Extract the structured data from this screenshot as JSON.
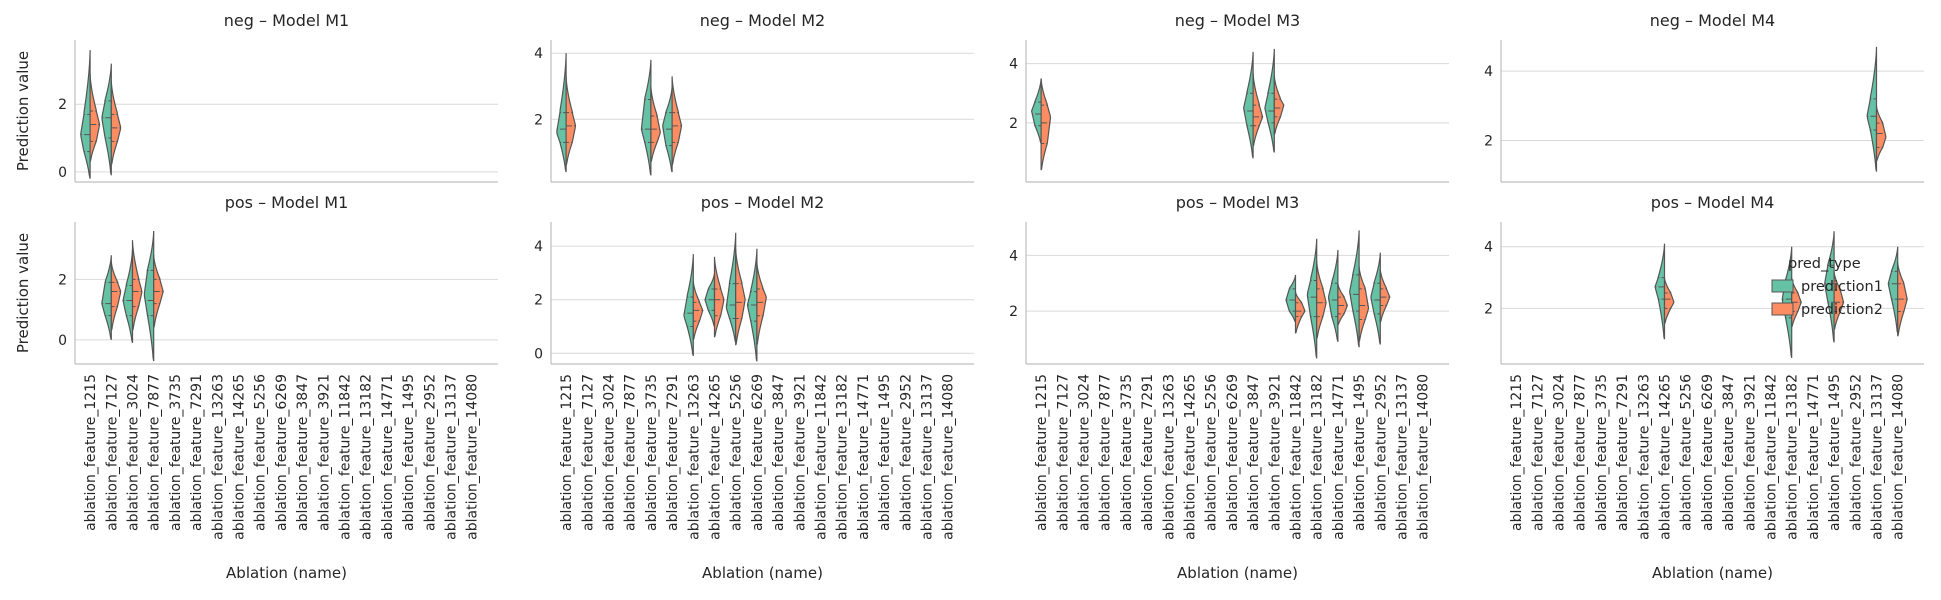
{
  "figure": {
    "legend_title": "pred_type",
    "legend_placement": "right",
    "colors": {
      "prediction1": "#66c2a5",
      "prediction2": "#fc8d62",
      "grid": "#d9d9d9",
      "spine": "#bfbfbf",
      "outline": "#555555"
    }
  },
  "chart_data": {
    "type": "violin",
    "split": true,
    "grid": true,
    "series_names": [
      "prediction1",
      "prediction2"
    ],
    "xlabel": "Ablation (name)",
    "ylabel": "Prediction value",
    "categories": [
      "ablation_feature_1215",
      "ablation_feature_7127",
      "ablation_feature_3024",
      "ablation_feature_7877",
      "ablation_feature_3735",
      "ablation_feature_7291",
      "ablation_feature_13263",
      "ablation_feature_14265",
      "ablation_feature_5256",
      "ablation_feature_6269",
      "ablation_feature_3847",
      "ablation_feature_3921",
      "ablation_feature_11842",
      "ablation_feature_13182",
      "ablation_feature_14771",
      "ablation_feature_1495",
      "ablation_feature_2952",
      "ablation_feature_13137",
      "ablation_feature_14080"
    ],
    "panels": [
      {
        "title": "neg – Model M1",
        "row": 0,
        "col": 0,
        "ylim": [
          -0.3,
          3.9
        ],
        "yticks": [
          0,
          2
        ],
        "violins": [
          {
            "category": "ablation_feature_1215",
            "p1": {
              "min": -0.2,
              "q1": 0.6,
              "median": 1.1,
              "q3": 1.7,
              "max": 3.6,
              "mode": 1.1
            },
            "p2": {
              "min": 0.3,
              "q1": 0.9,
              "median": 1.4,
              "q3": 1.8,
              "max": 2.9,
              "mode": 1.4
            }
          },
          {
            "category": "ablation_feature_7127",
            "p1": {
              "min": -0.1,
              "q1": 1.0,
              "median": 1.6,
              "q3": 2.1,
              "max": 3.2,
              "mode": 1.6
            },
            "p2": {
              "min": 0.2,
              "q1": 0.9,
              "median": 1.3,
              "q3": 1.7,
              "max": 2.7,
              "mode": 1.3
            }
          }
        ]
      },
      {
        "title": "neg – Model M2",
        "row": 0,
        "col": 1,
        "ylim": [
          0.1,
          4.4
        ],
        "yticks": [
          2,
          4
        ],
        "violins": [
          {
            "category": "ablation_feature_1215",
            "p1": {
              "min": 0.4,
              "q1": 1.3,
              "median": 1.7,
              "q3": 2.2,
              "max": 4.0,
              "mode": 1.6
            },
            "p2": {
              "min": 0.6,
              "q1": 1.3,
              "median": 1.8,
              "q3": 2.2,
              "max": 3.3,
              "mode": 1.8
            }
          },
          {
            "category": "ablation_feature_3735",
            "p1": {
              "min": 0.3,
              "q1": 1.3,
              "median": 1.7,
              "q3": 2.6,
              "max": 3.8,
              "mode": 1.7
            },
            "p2": {
              "min": 0.7,
              "q1": 1.3,
              "median": 1.7,
              "q3": 2.1,
              "max": 3.0,
              "mode": 1.6
            }
          },
          {
            "category": "ablation_feature_7291",
            "p1": {
              "min": 0.4,
              "q1": 1.2,
              "median": 1.7,
              "q3": 2.2,
              "max": 3.0,
              "mode": 1.8
            },
            "p2": {
              "min": 0.6,
              "q1": 1.3,
              "median": 1.8,
              "q3": 2.2,
              "max": 3.3,
              "mode": 1.8
            }
          }
        ]
      },
      {
        "title": "neg – Model M3",
        "row": 0,
        "col": 2,
        "ylim": [
          0.0,
          4.8
        ],
        "yticks": [
          2,
          4
        ],
        "violins": [
          {
            "category": "ablation_feature_1215",
            "p1": {
              "min": 1.3,
              "q1": 1.9,
              "median": 2.3,
              "q3": 2.7,
              "max": 3.5,
              "mode": 2.4
            },
            "p2": {
              "min": 0.4,
              "q1": 1.3,
              "median": 2.0,
              "q3": 2.6,
              "max": 3.5,
              "mode": 2.2
            }
          },
          {
            "category": "ablation_feature_3847",
            "p1": {
              "min": 0.8,
              "q1": 1.9,
              "median": 2.4,
              "q3": 3.0,
              "max": 4.4,
              "mode": 2.5
            },
            "p2": {
              "min": 1.2,
              "q1": 1.9,
              "median": 2.2,
              "q3": 2.6,
              "max": 3.7,
              "mode": 2.2
            }
          },
          {
            "category": "ablation_feature_3921",
            "p1": {
              "min": 1.0,
              "q1": 2.0,
              "median": 2.4,
              "q3": 3.0,
              "max": 4.5,
              "mode": 2.5
            },
            "p2": {
              "min": 1.6,
              "q1": 2.2,
              "median": 2.5,
              "q3": 2.8,
              "max": 3.6,
              "mode": 2.6
            }
          }
        ]
      },
      {
        "title": "neg – Model M4",
        "row": 0,
        "col": 3,
        "ylim": [
          0.8,
          4.9
        ],
        "yticks": [
          2,
          4
        ],
        "violins": [
          {
            "category": "ablation_feature_13137",
            "p1": {
              "min": 1.1,
              "q1": 2.3,
              "median": 2.7,
              "q3": 3.2,
              "max": 4.7,
              "mode": 2.7
            },
            "p2": {
              "min": 1.4,
              "q1": 1.8,
              "median": 2.2,
              "q3": 2.5,
              "max": 3.0,
              "mode": 2.1
            }
          }
        ]
      },
      {
        "title": "pos – Model M1",
        "row": 1,
        "col": 0,
        "ylim": [
          -0.8,
          3.9
        ],
        "yticks": [
          0,
          2
        ],
        "violins": [
          {
            "category": "ablation_feature_7127",
            "p1": {
              "min": 0.0,
              "q1": 0.8,
              "median": 1.2,
              "q3": 1.9,
              "max": 2.8,
              "mode": 1.2
            },
            "p2": {
              "min": 0.3,
              "q1": 1.1,
              "median": 1.6,
              "q3": 1.9,
              "max": 2.6,
              "mode": 1.6
            }
          },
          {
            "category": "ablation_feature_3024",
            "p1": {
              "min": -0.1,
              "q1": 0.8,
              "median": 1.3,
              "q3": 1.8,
              "max": 3.0,
              "mode": 1.3
            },
            "p2": {
              "min": 0.3,
              "q1": 1.1,
              "median": 1.6,
              "q3": 2.0,
              "max": 3.3,
              "mode": 1.6
            }
          },
          {
            "category": "ablation_feature_7877",
            "p1": {
              "min": -0.7,
              "q1": 0.8,
              "median": 1.3,
              "q3": 2.3,
              "max": 3.6,
              "mode": 1.5
            },
            "p2": {
              "min": 0.4,
              "q1": 1.2,
              "median": 1.6,
              "q3": 2.0,
              "max": 2.8,
              "mode": 1.6
            }
          }
        ]
      },
      {
        "title": "pos – Model M2",
        "row": 1,
        "col": 1,
        "ylim": [
          -0.4,
          4.9
        ],
        "yticks": [
          0,
          2,
          4
        ],
        "violins": [
          {
            "category": "ablation_feature_13263",
            "p1": {
              "min": -0.1,
              "q1": 1.0,
              "median": 1.5,
              "q3": 2.1,
              "max": 3.7,
              "mode": 1.4
            },
            "p2": {
              "min": 0.5,
              "q1": 1.2,
              "median": 1.6,
              "q3": 1.9,
              "max": 2.7,
              "mode": 1.6
            }
          },
          {
            "category": "ablation_feature_14265",
            "p1": {
              "min": 1.0,
              "q1": 1.6,
              "median": 2.0,
              "q3": 2.4,
              "max": 3.0,
              "mode": 2.0
            },
            "p2": {
              "min": 0.6,
              "q1": 1.4,
              "median": 2.0,
              "q3": 2.4,
              "max": 3.6,
              "mode": 2.0
            }
          },
          {
            "category": "ablation_feature_5256",
            "p1": {
              "min": 0.4,
              "q1": 1.3,
              "median": 1.8,
              "q3": 2.6,
              "max": 4.5,
              "mode": 1.7
            },
            "p2": {
              "min": 0.3,
              "q1": 1.3,
              "median": 1.9,
              "q3": 2.6,
              "max": 3.9,
              "mode": 2.0
            }
          },
          {
            "category": "ablation_feature_6269",
            "p1": {
              "min": -0.3,
              "q1": 1.2,
              "median": 1.8,
              "q3": 2.3,
              "max": 3.9,
              "mode": 1.8
            },
            "p2": {
              "min": 0.3,
              "q1": 1.4,
              "median": 1.9,
              "q3": 2.4,
              "max": 3.4,
              "mode": 2.1
            }
          }
        ]
      },
      {
        "title": "pos – Model M3",
        "row": 1,
        "col": 2,
        "ylim": [
          0.1,
          5.2
        ],
        "yticks": [
          2,
          4
        ],
        "violins": [
          {
            "category": "ablation_feature_11842",
            "p1": {
              "min": 1.6,
              "q1": 2.0,
              "median": 2.4,
              "q3": 2.8,
              "max": 3.3,
              "mode": 2.4
            },
            "p2": {
              "min": 1.2,
              "q1": 1.8,
              "median": 2.0,
              "q3": 2.3,
              "max": 2.7,
              "mode": 2.0
            }
          },
          {
            "category": "ablation_feature_13182",
            "p1": {
              "min": 0.3,
              "q1": 1.8,
              "median": 2.5,
              "q3": 3.1,
              "max": 4.6,
              "mode": 2.6
            },
            "p2": {
              "min": 1.0,
              "q1": 1.8,
              "median": 2.3,
              "q3": 2.8,
              "max": 3.8,
              "mode": 2.3
            }
          },
          {
            "category": "ablation_feature_14771",
            "p1": {
              "min": 0.9,
              "q1": 1.8,
              "median": 2.4,
              "q3": 3.0,
              "max": 4.2,
              "mode": 2.5
            },
            "p2": {
              "min": 1.5,
              "q1": 1.9,
              "median": 2.2,
              "q3": 2.5,
              "max": 3.0,
              "mode": 2.2
            }
          },
          {
            "category": "ablation_feature_1495",
            "p1": {
              "min": 0.7,
              "q1": 2.0,
              "median": 2.6,
              "q3": 3.3,
              "max": 4.9,
              "mode": 2.7
            },
            "p2": {
              "min": 0.9,
              "q1": 1.7,
              "median": 2.2,
              "q3": 2.8,
              "max": 3.6,
              "mode": 2.1
            }
          },
          {
            "category": "ablation_feature_2952",
            "p1": {
              "min": 0.8,
              "q1": 1.9,
              "median": 2.4,
              "q3": 3.0,
              "max": 4.1,
              "mode": 2.5
            },
            "p2": {
              "min": 1.6,
              "q1": 2.2,
              "median": 2.5,
              "q3": 2.8,
              "max": 3.5,
              "mode": 2.5
            }
          }
        ]
      },
      {
        "title": "pos – Model M4",
        "row": 1,
        "col": 3,
        "ylim": [
          0.2,
          4.8
        ],
        "yticks": [
          2,
          4
        ],
        "violins": [
          {
            "category": "ablation_feature_14265",
            "p1": {
              "min": 1.0,
              "q1": 2.3,
              "median": 2.7,
              "q3": 3.0,
              "max": 4.1,
              "mode": 2.7
            },
            "p2": {
              "min": 1.5,
              "q1": 2.0,
              "median": 2.3,
              "q3": 2.5,
              "max": 3.0,
              "mode": 2.2
            }
          },
          {
            "category": "ablation_feature_13182",
            "p1": {
              "min": 0.4,
              "q1": 1.7,
              "median": 2.3,
              "q3": 2.9,
              "max": 4.0,
              "mode": 2.3
            },
            "p2": {
              "min": 1.4,
              "q1": 1.9,
              "median": 2.2,
              "q3": 2.5,
              "max": 3.0,
              "mode": 2.2
            }
          },
          {
            "category": "ablation_feature_1495",
            "p1": {
              "min": 0.9,
              "q1": 2.2,
              "median": 2.8,
              "q3": 3.4,
              "max": 4.5,
              "mode": 2.8
            },
            "p2": {
              "min": 1.3,
              "q1": 1.9,
              "median": 2.2,
              "q3": 2.6,
              "max": 3.2,
              "mode": 2.2
            }
          },
          {
            "category": "ablation_feature_14080",
            "p1": {
              "min": 1.2,
              "q1": 2.3,
              "median": 2.8,
              "q3": 3.2,
              "max": 4.0,
              "mode": 2.8
            },
            "p2": {
              "min": 1.1,
              "q1": 1.9,
              "median": 2.3,
              "q3": 2.8,
              "max": 3.5,
              "mode": 2.3
            }
          }
        ]
      }
    ]
  }
}
